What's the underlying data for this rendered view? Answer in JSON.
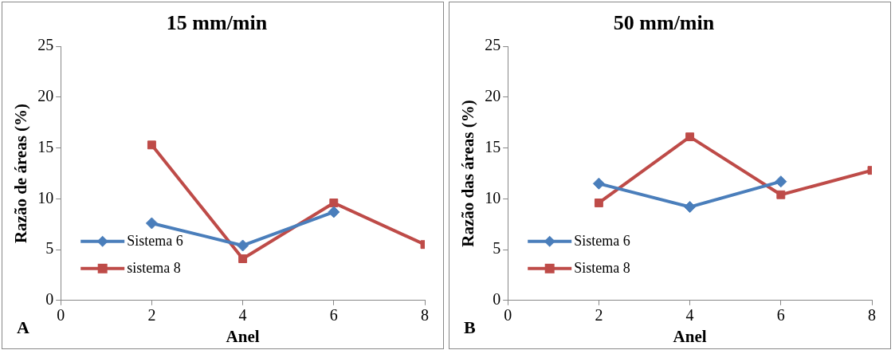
{
  "chart_data": [
    {
      "type": "line",
      "title": "15 mm/min",
      "xlabel": "Anel",
      "ylabel": "Razão de áreas (%)",
      "annotations": [
        "A"
      ],
      "series": [
        {
          "name": "Sistema 6",
          "color": "#4a7ebb",
          "marker": "diamond",
          "x": [
            2,
            4,
            6
          ],
          "values": [
            7.6,
            5.4,
            8.7
          ]
        },
        {
          "name": "sistema 8",
          "color": "#be4b48",
          "marker": "square",
          "x": [
            2,
            4,
            6,
            8
          ],
          "values": [
            15.3,
            4.1,
            9.6,
            5.5
          ]
        }
      ],
      "xlim": [
        0,
        8
      ],
      "xticks": [
        0,
        2,
        4,
        6,
        8
      ],
      "ylim": [
        0,
        25
      ],
      "yticks": [
        0,
        5,
        10,
        15,
        20,
        25
      ],
      "grid": false,
      "legend": "bottom left",
      "line_style": "solid"
    },
    {
      "type": "line",
      "title": "50 mm/min",
      "xlabel": "Anel",
      "ylabel": "Razão das áreas (%)",
      "annotations": [
        "B"
      ],
      "series": [
        {
          "name": "Sistema 6",
          "color": "#4a7ebb",
          "marker": "diamond",
          "x": [
            2,
            4,
            6
          ],
          "values": [
            11.5,
            9.2,
            11.7
          ]
        },
        {
          "name": "Sistema 8",
          "color": "#be4b48",
          "marker": "square",
          "x": [
            2,
            4,
            6,
            8
          ],
          "values": [
            9.6,
            16.1,
            10.4,
            12.8
          ]
        }
      ],
      "xlim": [
        0,
        8
      ],
      "xticks": [
        0,
        2,
        4,
        6,
        8
      ],
      "ylim": [
        0,
        25
      ],
      "yticks": [
        0,
        5,
        10,
        15,
        20,
        25
      ],
      "grid": false,
      "legend": "bottom left",
      "line_style": "solid"
    }
  ]
}
